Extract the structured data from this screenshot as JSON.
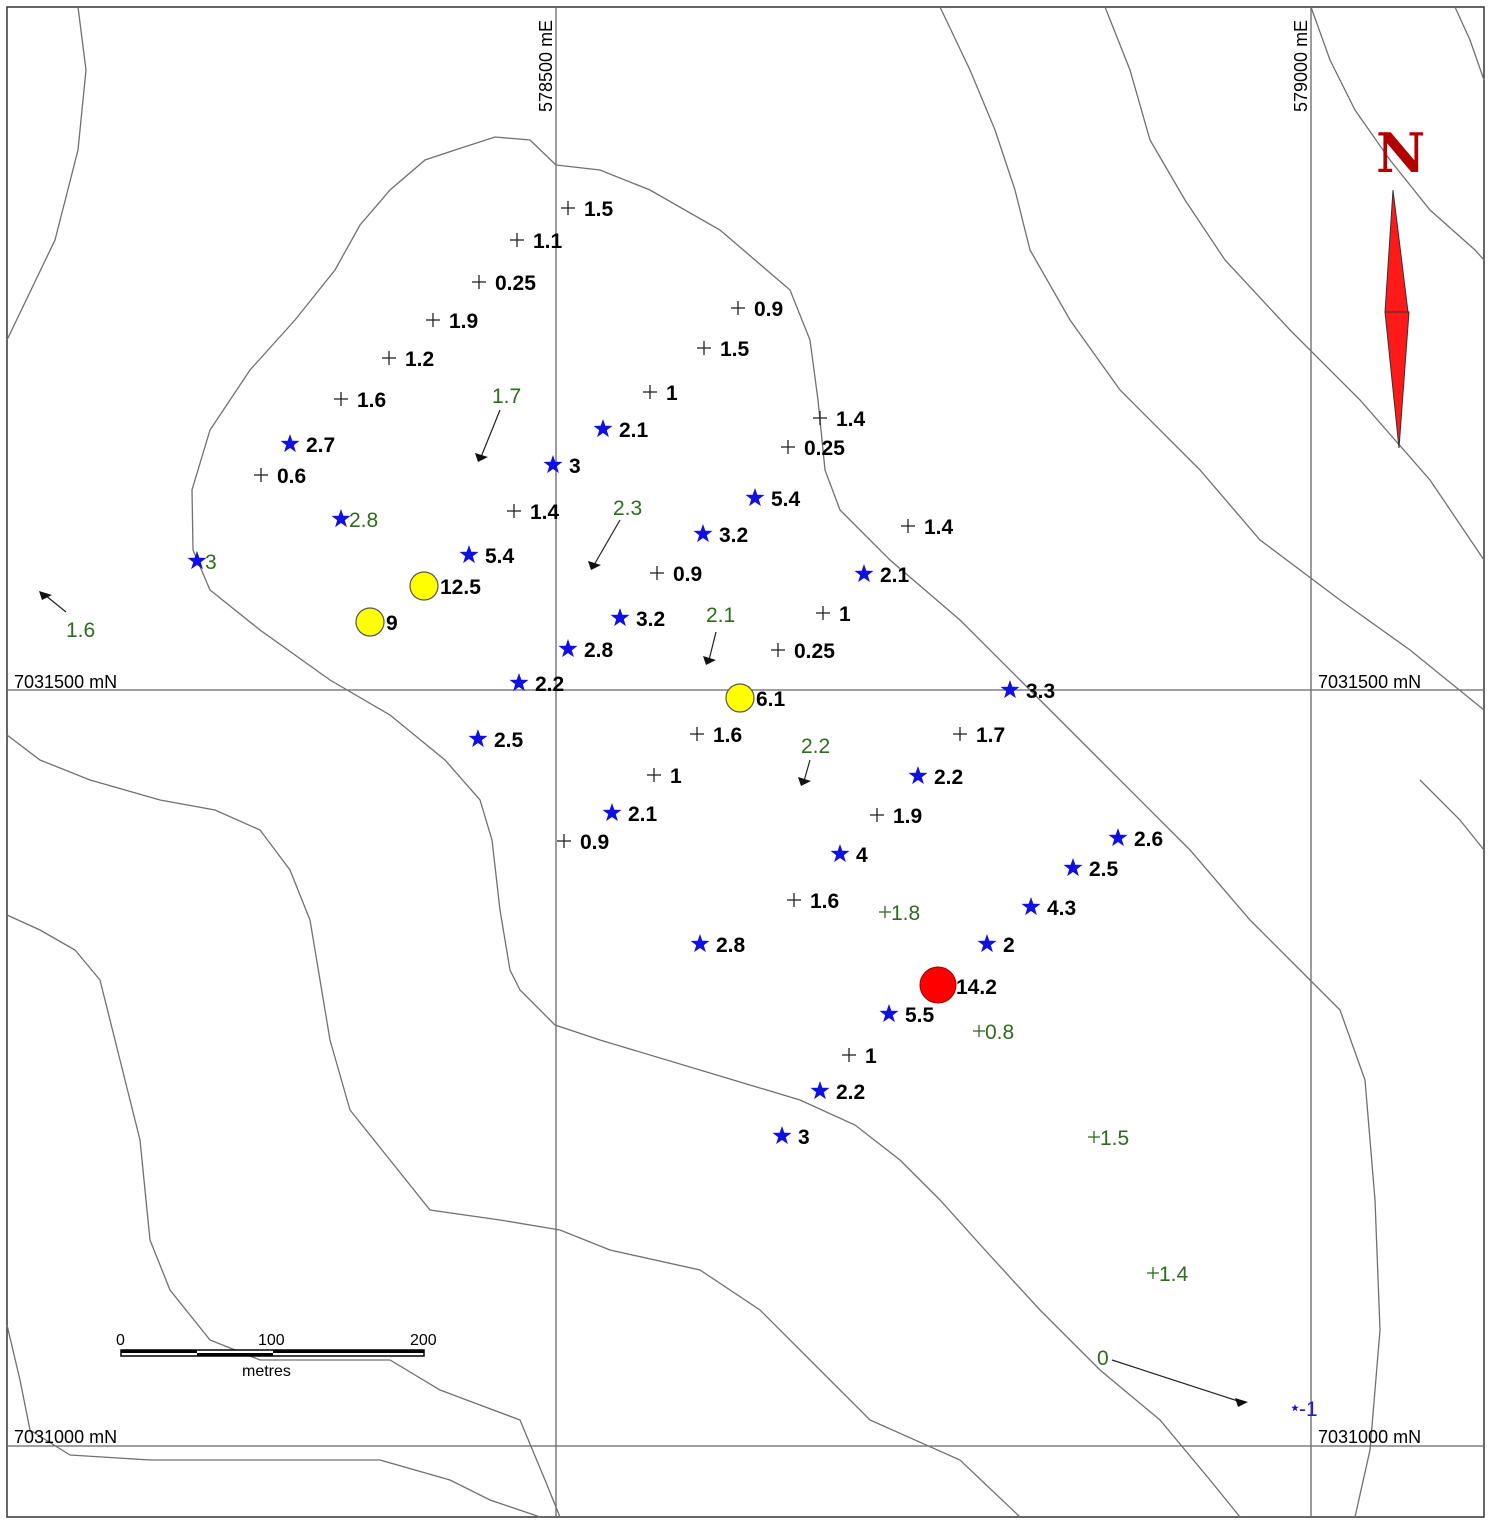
{
  "grid": {
    "easting_labels": [
      "578500 mE",
      "579000 mE"
    ],
    "northing_labels": [
      "7031500 mN",
      "7031000 mN"
    ]
  },
  "north_arrow": {
    "label": "N"
  },
  "scale_bar": {
    "ticks": [
      "0",
      "100",
      "200"
    ],
    "unit": "metres"
  },
  "colors": {
    "star": "#1010e0",
    "gold": "#ffff00",
    "high": "#ff0000",
    "green_text": "#2e6b1f",
    "contour": "#707070"
  },
  "samples": {
    "cross": [
      "1.5",
      "1.1",
      "0.25",
      "1.9",
      "1.2",
      "1.6",
      "0.6",
      "0.9",
      "1.5",
      "1",
      "1.4",
      "0.25",
      "1.4",
      "1.4",
      "0.9",
      "1",
      "0.25",
      "1.6",
      "1.7",
      "1",
      "1.9",
      "0.9",
      "1.6",
      "1"
    ],
    "star": [
      "2.7",
      "3",
      "2.1",
      "5.4",
      "3.2",
      "5.4",
      "2.1",
      "3.2",
      "2.8",
      "2.2",
      "3.3",
      "2.5",
      "2.2",
      "2.1",
      "4",
      "2.6",
      "2.5",
      "4.3",
      "2",
      "2.8",
      "5.5",
      "2.2",
      "3"
    ],
    "star_green": [
      "2.8",
      "3"
    ],
    "circle_gold": [
      "12.5",
      "9",
      "6.1"
    ],
    "circle_red": [
      "14.2"
    ],
    "green_cross": [
      "1.8",
      "0.8",
      "1.5",
      "1.4"
    ],
    "arrow_green": [
      "1.7",
      "2.3",
      "2.1",
      "2.2",
      "1.6",
      "0"
    ],
    "blue_small": [
      "-1"
    ]
  }
}
